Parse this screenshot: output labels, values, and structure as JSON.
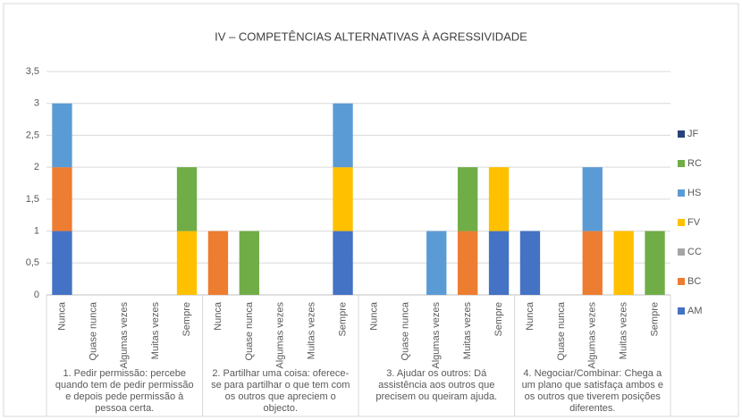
{
  "chart_data": {
    "type": "stacked_bar",
    "title": "IV – COMPETÊNCIAS ALTERNATIVAS À AGRESSIVIDADE",
    "categories": [
      "Nunca",
      "Quase nunca",
      "Algumas vezes",
      "Muitas vezes",
      "Sempre",
      "Nunca",
      "Quase nunca",
      "Algumas vezes",
      "Muitas vezes",
      "Sempre",
      "Nunca",
      "Quase nunca",
      "Algumas vezes",
      "Muitas vezes",
      "Sempre",
      "Nunca",
      "Quase nunca",
      "Algumas vezes",
      "Muitas vezes",
      "Sempre"
    ],
    "group_labels": [
      "1. Pedir permissão: percebe quando tem de pedir permissão e depois pede permissão à pessoa certa.",
      "2. Partilhar uma coisa: oferece-se para partilhar o que tem com os outros que apreciem o objecto.",
      "3. Ajudar os outros: Dá assistência aos outros que precisem ou queiram ajuda.",
      "4. Negociar/Combinar: Chega a um plano que satisfaça ambos e os outros que tiverem posições diferentes."
    ],
    "series": [
      {
        "name": "AM",
        "color": "#4472c4",
        "values": [
          1,
          0,
          0,
          0,
          0,
          0,
          0,
          0,
          0,
          1,
          0,
          0,
          0,
          0,
          1,
          1,
          0,
          0,
          0,
          0
        ]
      },
      {
        "name": "BC",
        "color": "#ed7d31",
        "values": [
          1,
          0,
          0,
          0,
          0,
          1,
          0,
          0,
          0,
          0,
          0,
          0,
          0,
          1,
          0,
          0,
          0,
          1,
          0,
          0
        ]
      },
      {
        "name": "CC",
        "color": "#a5a5a5",
        "values": [
          0,
          0,
          0,
          0,
          0,
          0,
          0,
          0,
          0,
          0,
          0,
          0,
          0,
          0,
          0,
          0,
          0,
          0,
          0,
          0
        ]
      },
      {
        "name": "FV",
        "color": "#ffc000",
        "values": [
          0,
          0,
          0,
          0,
          1,
          0,
          0,
          0,
          0,
          1,
          0,
          0,
          0,
          0,
          1,
          0,
          0,
          0,
          1,
          0
        ]
      },
      {
        "name": "HS",
        "color": "#5b9bd5",
        "values": [
          1,
          0,
          0,
          0,
          0,
          0,
          0,
          0,
          0,
          1,
          0,
          0,
          1,
          0,
          0,
          0,
          0,
          1,
          0,
          0
        ]
      },
      {
        "name": "RC",
        "color": "#70ad47",
        "values": [
          0,
          0,
          0,
          0,
          1,
          0,
          1,
          0,
          0,
          0,
          0,
          0,
          0,
          1,
          0,
          0,
          0,
          0,
          0,
          1
        ]
      },
      {
        "name": "JF",
        "color": "#264478",
        "values": [
          0,
          0,
          0,
          0,
          0,
          0,
          0,
          0,
          0,
          0,
          0,
          0,
          0,
          0,
          0,
          0,
          0,
          0,
          0,
          0
        ]
      }
    ],
    "ylim": [
      0,
      3.5
    ],
    "yticks": [
      0,
      {
        "value": 0.5,
        "label": "0,5"
      },
      1,
      {
        "value": 1.5,
        "label": "1,5"
      },
      2,
      {
        "value": 2.5,
        "label": "2,5"
      },
      3,
      {
        "value": 3.5,
        "label": "3,5"
      }
    ],
    "grid": true,
    "legend": "right"
  }
}
